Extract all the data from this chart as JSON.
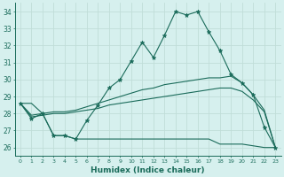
{
  "xlabel": "Humidex (Indice chaleur)",
  "bg_color": "#d6f0ee",
  "line_color": "#1a6b5a",
  "grid_color": "#c0ddd8",
  "ylim": [
    25.5,
    34.5
  ],
  "xlim": [
    -0.5,
    23.5
  ],
  "yticks": [
    26,
    27,
    28,
    29,
    30,
    31,
    32,
    33,
    34
  ],
  "xticks": [
    0,
    1,
    2,
    3,
    4,
    5,
    6,
    7,
    8,
    9,
    10,
    11,
    12,
    13,
    14,
    15,
    16,
    17,
    18,
    19,
    20,
    21,
    22,
    23
  ],
  "line1_y": [
    28.6,
    27.7,
    28.0,
    26.7,
    26.7,
    26.5,
    27.6,
    28.5,
    29.5,
    30.0,
    31.1,
    32.2,
    31.3,
    32.6,
    34.0,
    33.8,
    34.0,
    32.8,
    31.7,
    30.3,
    29.8,
    29.1,
    27.2,
    26.0
  ],
  "line2_y": [
    28.6,
    27.9,
    28.0,
    28.1,
    28.1,
    28.2,
    28.4,
    28.6,
    28.8,
    29.0,
    29.2,
    29.4,
    29.5,
    29.7,
    29.8,
    29.9,
    30.0,
    30.1,
    30.1,
    30.2,
    29.8,
    29.1,
    28.2,
    26.0
  ],
  "line3_y": [
    28.6,
    27.8,
    27.9,
    28.0,
    28.0,
    28.1,
    28.2,
    28.3,
    28.5,
    28.6,
    28.7,
    28.8,
    28.9,
    29.0,
    29.1,
    29.2,
    29.3,
    29.4,
    29.5,
    29.5,
    29.3,
    28.8,
    28.1,
    26.0
  ],
  "line4_y": [
    28.6,
    28.6,
    28.0,
    26.7,
    26.7,
    26.5,
    26.5,
    26.5,
    26.5,
    26.5,
    26.5,
    26.5,
    26.5,
    26.5,
    26.5,
    26.5,
    26.5,
    26.5,
    26.2,
    26.2,
    26.2,
    26.1,
    26.0,
    26.0
  ]
}
